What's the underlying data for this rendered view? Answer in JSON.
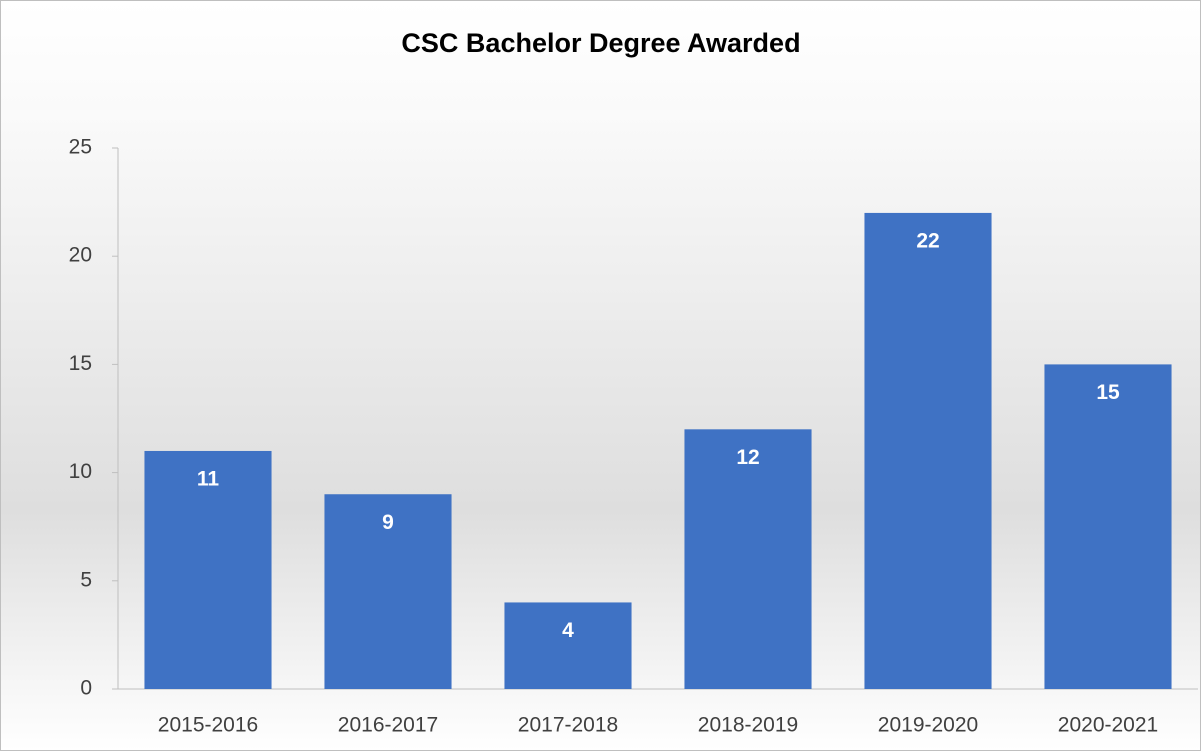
{
  "chart_data": {
    "type": "bar",
    "title": "CSC Bachelor Degree Awarded",
    "categories": [
      "2015-2016",
      "2016-2017",
      "2017-2018",
      "2018-2019",
      "2019-2020",
      "2020-2021"
    ],
    "values": [
      11,
      9,
      4,
      12,
      22,
      15
    ],
    "color": "#3f72c4",
    "ylim": [
      0,
      25
    ],
    "yticks": [
      0,
      5,
      10,
      15,
      20,
      25
    ],
    "grid": false,
    "data_labels": true
  }
}
